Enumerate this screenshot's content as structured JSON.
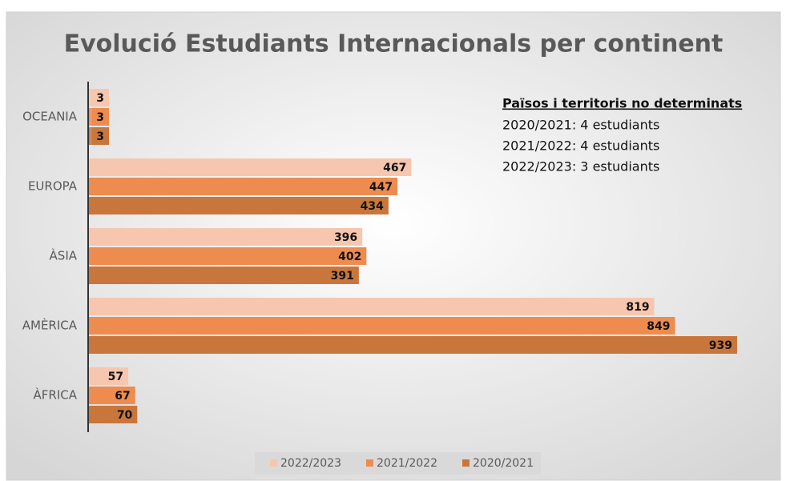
{
  "chart_data": {
    "type": "bar",
    "orientation": "horizontal",
    "title": "Evolució Estudiants Internacionals per continent",
    "categories": [
      "OCEANIA",
      "EUROPA",
      "ÀSIA",
      "AMÈRICA",
      "ÀFRICA"
    ],
    "series": [
      {
        "name": "2022/2023",
        "color": "#f6c7ae",
        "values": [
          3,
          467,
          396,
          819,
          57
        ]
      },
      {
        "name": "2021/2022",
        "color": "#ee8c4f",
        "values": [
          3,
          447,
          402,
          849,
          67
        ]
      },
      {
        "name": "2020/2021",
        "color": "#c9763d",
        "values": [
          3,
          434,
          391,
          939,
          70
        ]
      }
    ],
    "annotation": {
      "title": "Països i territoris  no determinats",
      "lines": [
        "2020/2021: 4 estudiants",
        "2021/2022: 4 estudiants",
        "2022/2023: 3 estudiants"
      ]
    },
    "legend": "bottom"
  }
}
